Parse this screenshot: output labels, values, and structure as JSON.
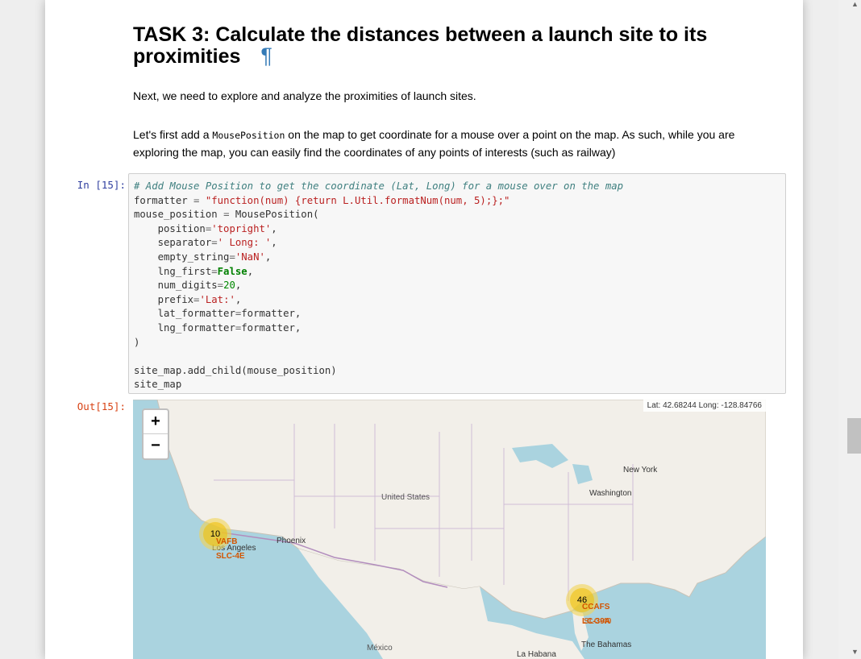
{
  "markdown": {
    "heading": "TASK 3: Calculate the distances between a launch site to its proximities",
    "pilcrow": "¶",
    "para1": "Next, we need to explore and analyze the proximities of launch sites.",
    "para2_before": "Let's first add a ",
    "para2_code": "MousePosition",
    "para2_after": " on the map to get coordinate for a mouse over a point on the map. As such, while you are exploring the map, you can easily find the coordinates of any points of interests (such as railway)"
  },
  "cell": {
    "in_prompt": "In [15]:",
    "out_prompt": "Out[15]:"
  },
  "map": {
    "zoom_in": "+",
    "zoom_out": "−",
    "mouse_position": "Lat: 42.68244 Long: -128.84766",
    "places": {
      "united_states": "United States",
      "new_york": "New York",
      "washington": "Washington",
      "phoenix": "Phoenix",
      "los_angeles": "Los Angeles",
      "mexico": "México",
      "la_habana": "La Habana",
      "bahamas": "The Bahamas"
    },
    "clusters": {
      "west": "10",
      "east": "46"
    },
    "sites": {
      "vafb": "VAFB",
      "slc4e": "SLC-4E",
      "ccafs": "CCAFS",
      "lc39a": "LC-39A",
      "slc40": "SLC-40"
    }
  }
}
